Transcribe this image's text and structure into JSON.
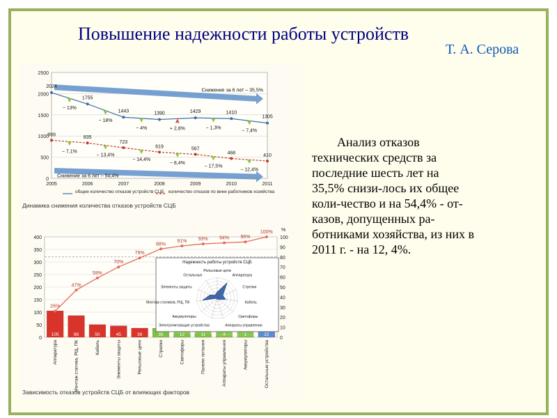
{
  "slide": {
    "title": "Повышение надежности работы устройств",
    "author": "Т. А. Серова",
    "body": {
      "lines": [
        "Анализ отказов",
        "технических средств за",
        "последние шесть лет на",
        "35,5% снизи-лось их общее",
        "коли-чество и на 54,4% - от-",
        "казов, допущенных ра-",
        "ботниками хозяйства, из них в",
        "2011 г. - на 12, 4%."
      ]
    }
  },
  "chart_data": [
    {
      "type": "line",
      "title": "",
      "caption": "Динамика снижения количества отказов устройств СЦБ",
      "x": [
        "2005",
        "2006",
        "2007",
        "2008",
        "2009",
        "2010",
        "2011"
      ],
      "ylim": [
        0,
        2500
      ],
      "yticks": [
        "0",
        "500",
        "1000",
        "1500",
        "2000",
        "2500"
      ],
      "grid": true,
      "series": [
        {
          "name": "общее количество отказов устройств СЦБ",
          "values": [
            2024,
            1755,
            1443,
            1390,
            1429,
            1410,
            1305
          ],
          "labels": [
            "2024",
            "1755",
            "1443",
            "1390",
            "1429",
            "1410",
            "1305"
          ],
          "changes": [
            "− 13%",
            "− 18%",
            "− 4%",
            "+ 2,8%",
            "− 1,3%",
            "− 7,4%"
          ],
          "color": "#3b6ea8"
        },
        {
          "name": "количество отказов по вине работников хозяйства",
          "values": [
            899,
            835,
            723,
            619,
            567,
            468,
            410
          ],
          "labels": [
            "899",
            "835",
            "723",
            "619",
            "567",
            "468",
            "410"
          ],
          "changes": [
            "− 7,1%",
            "− 13,4%",
            "− 14,4%",
            "− 8,4%",
            "− 17,5%",
            "− 12,4%"
          ],
          "color": "#c0392b"
        }
      ],
      "annotations": [
        "Снижение за 6 лет – 35,5%",
        "Снижение за 6 лет – 54,4%"
      ],
      "colors": {
        "trend_arrow": "#5d8fca",
        "change_arrow_down": "#8dc63f",
        "change_arrow_up": "#d9534f"
      }
    },
    {
      "type": "bar",
      "subtype": "pareto",
      "caption": "Зависимость отказов устройств СЦБ от влияющих факторов",
      "categories": [
        "Аппаратура",
        "Монтаж статива, РЩ, ПК",
        "Кабель",
        "Элементы защиты",
        "Рельсовые цепи",
        "Стрелки",
        "Светофоры",
        "Панели питания",
        "Аппараты управления",
        "Аккумуляторы",
        "Остальные устройства"
      ],
      "values": [
        105,
        86,
        50,
        45,
        36,
        35,
        12,
        11,
        4,
        1,
        22
      ],
      "bar_colors": [
        "#d9342b",
        "#d9342b",
        "#d9342b",
        "#d9342b",
        "#d9342b",
        "#7cc242",
        "#7cc242",
        "#7cc242",
        "#7cc242",
        "#7cc242",
        "#5b8bd0"
      ],
      "ylim": [
        0,
        400
      ],
      "yticks": [
        "0",
        "50",
        "100",
        "150",
        "200",
        "250",
        "300",
        "350",
        "400"
      ],
      "y2lim": [
        0,
        100
      ],
      "y2ticks": [
        "0",
        "10",
        "20",
        "30",
        "40",
        "50",
        "60",
        "70",
        "80",
        "90",
        "100"
      ],
      "y2label": "%",
      "cumulative_percent": [
        26,
        47,
        59,
        70,
        79,
        88,
        91,
        93,
        94,
        95,
        100
      ],
      "cumulative_labels": [
        "26%",
        "47%",
        "59%",
        "70%",
        "79%",
        "88%",
        "91%",
        "93%",
        "94%",
        "95%",
        "100%"
      ],
      "cumulative_color": "#e36c5a"
    },
    {
      "type": "radar",
      "title": "Надежность работы устройств СЦБ",
      "axes": [
        "Рельсовые цепи",
        "Аппаратура",
        "Стрелки",
        "Кабель",
        "Светофоры",
        "Аппараты управления",
        "Электропитающие устройства",
        "Аккумуляторы",
        "Монтаж стативов, РЩ, ПК",
        "Элементы защиты",
        "Остальные"
      ],
      "rlim": [
        0,
        120
      ],
      "rticks": [
        "0",
        "20",
        "40",
        "60",
        "80",
        "100",
        "120"
      ],
      "values": [
        36,
        105,
        35,
        50,
        12,
        4,
        11,
        1,
        86,
        45,
        22
      ],
      "color": "#1f4e9c"
    }
  ]
}
